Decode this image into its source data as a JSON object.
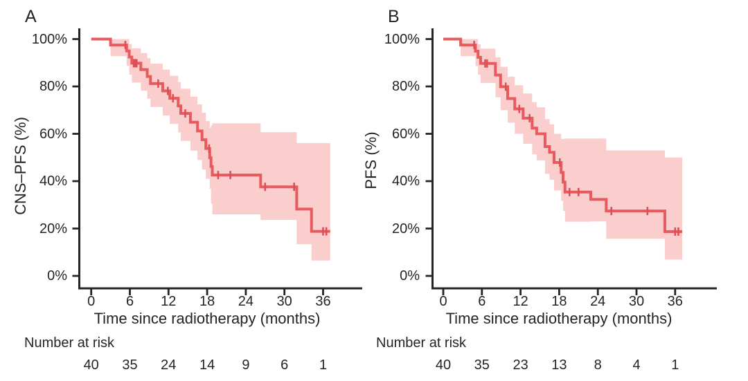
{
  "figure": {
    "background": "#ffffff"
  },
  "colors": {
    "curve": "#e75b5e",
    "band": "#f9cecd",
    "censor": "#de4e55",
    "axis": "#272324",
    "text": "#272324"
  },
  "chart_data": [
    {
      "type": "line",
      "subtype": "kaplan-meier-step",
      "panel_label": "A",
      "ylabel": "CNS–PFS (%)",
      "xlabel": "Time since radiotherapy (months)",
      "xlim": [
        0,
        39
      ],
      "ylim": [
        0,
        100
      ],
      "xticks": [
        0,
        6,
        12,
        18,
        24,
        30,
        36
      ],
      "x_tick_labels": [
        "0",
        "6",
        "12",
        "18",
        "24",
        "30",
        "36"
      ],
      "yticks": [
        100,
        80,
        60,
        40,
        20,
        0
      ],
      "y_tick_labels": [
        "100%",
        "80%",
        "60%",
        "40%",
        "20%",
        "0%"
      ],
      "grid": false,
      "legend": "none",
      "end_time": 37.1,
      "steps": [
        [
          0.0,
          100.0,
          100.0,
          100.0
        ],
        [
          3.0,
          97.5,
          92.8,
          100.0
        ],
        [
          5.5,
          95.0,
          88.7,
          100.0
        ],
        [
          5.9,
          92.4,
          85.0,
          97.9
        ],
        [
          6.3,
          89.8,
          81.6,
          96.1
        ],
        [
          7.7,
          87.1,
          78.2,
          94.1
        ],
        [
          8.7,
          84.2,
          74.8,
          91.9
        ],
        [
          9.2,
          81.2,
          71.3,
          89.6
        ],
        [
          11.1,
          78.1,
          67.7,
          87.1
        ],
        [
          12.2,
          75.0,
          64.2,
          84.5
        ],
        [
          13.5,
          71.8,
          60.6,
          81.8
        ],
        [
          13.9,
          68.6,
          57.0,
          79.0
        ],
        [
          15.4,
          64.9,
          52.9,
          75.7
        ],
        [
          16.5,
          61.2,
          48.9,
          72.4
        ],
        [
          17.2,
          57.5,
          44.9,
          68.9
        ],
        [
          17.8,
          53.8,
          41.0,
          65.4
        ],
        [
          18.4,
          49.9,
          36.8,
          62.5
        ],
        [
          18.6,
          46.2,
          30.5,
          63.5
        ],
        [
          18.8,
          42.6,
          26.0,
          64.4
        ],
        [
          26.3,
          37.6,
          23.6,
          60.7
        ],
        [
          31.9,
          28.2,
          13.4,
          56.1
        ],
        [
          34.2,
          18.8,
          6.5,
          56.1
        ]
      ],
      "censors": [
        [
          5.3,
          97.5
        ],
        [
          6.6,
          89.8
        ],
        [
          6.8,
          89.8
        ],
        [
          7.05,
          89.8
        ],
        [
          10.4,
          81.2
        ],
        [
          11.9,
          78.1
        ],
        [
          12.7,
          75.0
        ],
        [
          14.6,
          68.6
        ],
        [
          18.3,
          53.8
        ],
        [
          19.7,
          42.6
        ],
        [
          21.6,
          42.6
        ],
        [
          27.0,
          37.6
        ],
        [
          31.5,
          37.6
        ],
        [
          36.0,
          18.8
        ],
        [
          36.5,
          18.8
        ]
      ],
      "number_at_risk": {
        "label": "Number at risk",
        "times": [
          0,
          6,
          12,
          18,
          24,
          30,
          36
        ],
        "values": [
          40,
          35,
          24,
          14,
          9,
          6,
          1
        ]
      }
    },
    {
      "type": "line",
      "subtype": "kaplan-meier-step",
      "panel_label": "B",
      "ylabel": "PFS (%)",
      "xlabel": "Time since radiotherapy (months)",
      "xlim": [
        0,
        39
      ],
      "ylim": [
        0,
        100
      ],
      "xticks": [
        0,
        6,
        12,
        18,
        24,
        30,
        36
      ],
      "x_tick_labels": [
        "0",
        "6",
        "12",
        "18",
        "24",
        "30",
        "36"
      ],
      "yticks": [
        100,
        80,
        60,
        40,
        20,
        0
      ],
      "y_tick_labels": [
        "100%",
        "80%",
        "60%",
        "40%",
        "20%",
        "0%"
      ],
      "grid": false,
      "legend": "none",
      "end_time": 37.1,
      "steps": [
        [
          0.0,
          100.0,
          100.0,
          100.0
        ],
        [
          2.7,
          97.5,
          92.8,
          100.0
        ],
        [
          5.0,
          94.9,
          88.6,
          100.0
        ],
        [
          5.4,
          92.3,
          84.9,
          97.8
        ],
        [
          5.8,
          89.7,
          81.5,
          96.0
        ],
        [
          8.1,
          84.8,
          75.4,
          92.3
        ],
        [
          8.9,
          79.9,
          70.0,
          88.3
        ],
        [
          10.0,
          74.9,
          64.7,
          84.1
        ],
        [
          11.1,
          70.5,
          60.0,
          80.5
        ],
        [
          12.4,
          66.6,
          55.8,
          77.0
        ],
        [
          13.8,
          62.4,
          51.3,
          73.4
        ],
        [
          14.5,
          60.0,
          48.8,
          71.2
        ],
        [
          15.8,
          54.6,
          43.1,
          66.2
        ],
        [
          16.5,
          52.2,
          40.6,
          64.0
        ],
        [
          17.2,
          47.9,
          36.1,
          60.0
        ],
        [
          18.3,
          43.7,
          31.7,
          57.8
        ],
        [
          18.6,
          39.6,
          27.4,
          57.9
        ],
        [
          18.9,
          35.4,
          22.9,
          58.0
        ],
        [
          22.9,
          32.3,
          23.0,
          58.0
        ],
        [
          25.3,
          27.4,
          15.7,
          53.0
        ],
        [
          34.4,
          18.7,
          6.9,
          50.0
        ]
      ],
      "censors": [
        [
          4.8,
          97.5
        ],
        [
          6.5,
          89.7
        ],
        [
          6.8,
          89.7
        ],
        [
          9.7,
          79.9
        ],
        [
          11.8,
          70.5
        ],
        [
          13.4,
          66.6
        ],
        [
          18.1,
          47.9
        ],
        [
          19.6,
          35.4
        ],
        [
          21.0,
          35.4
        ],
        [
          26.1,
          27.4
        ],
        [
          31.7,
          27.4
        ],
        [
          36.0,
          18.7
        ],
        [
          36.5,
          18.7
        ]
      ],
      "number_at_risk": {
        "label": "Number at risk",
        "times": [
          0,
          6,
          12,
          18,
          24,
          30,
          36
        ],
        "values": [
          40,
          35,
          23,
          13,
          8,
          4,
          1
        ]
      }
    }
  ]
}
